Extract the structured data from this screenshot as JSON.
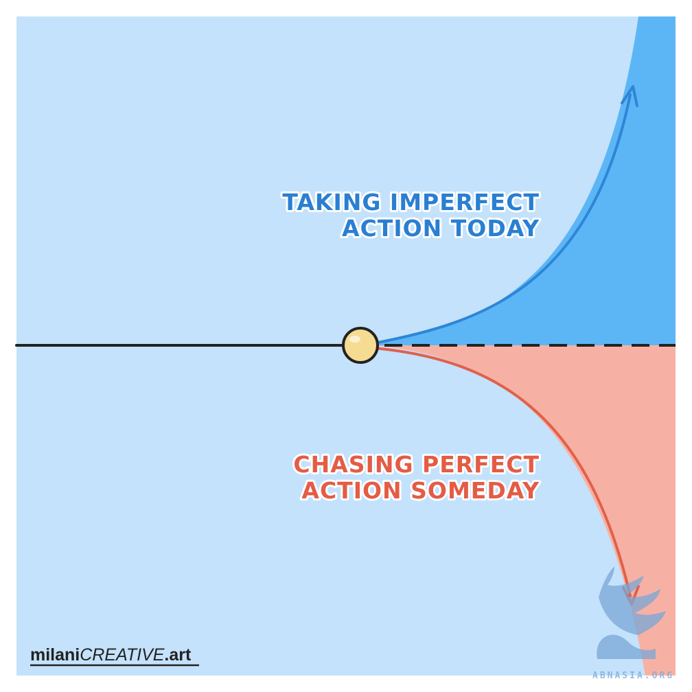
{
  "diagram": {
    "upper_label": {
      "line1": "TAKING IMPERFECT",
      "line2": "ACTION TODAY"
    },
    "lower_label": {
      "line1": "CHASING PERFECT",
      "line2": "ACTION SOMEDAY"
    }
  },
  "credit": {
    "brand": "milani",
    "brand_caps": "CREATIVE",
    "domain": ".art"
  },
  "watermark": {
    "text": "ABNASIA.ORG"
  },
  "colors": {
    "background": "#c4e2fb",
    "upper_fill": "#5cb6f6",
    "upper_line": "#2d86d6",
    "upper_text": "#2a7fd1",
    "lower_fill": "#f7b1a4",
    "lower_line": "#e0614c",
    "lower_text": "#e45c44",
    "axis": "#222222",
    "node_fill": "#f6dc92",
    "watermark": "#7aa7d6"
  }
}
